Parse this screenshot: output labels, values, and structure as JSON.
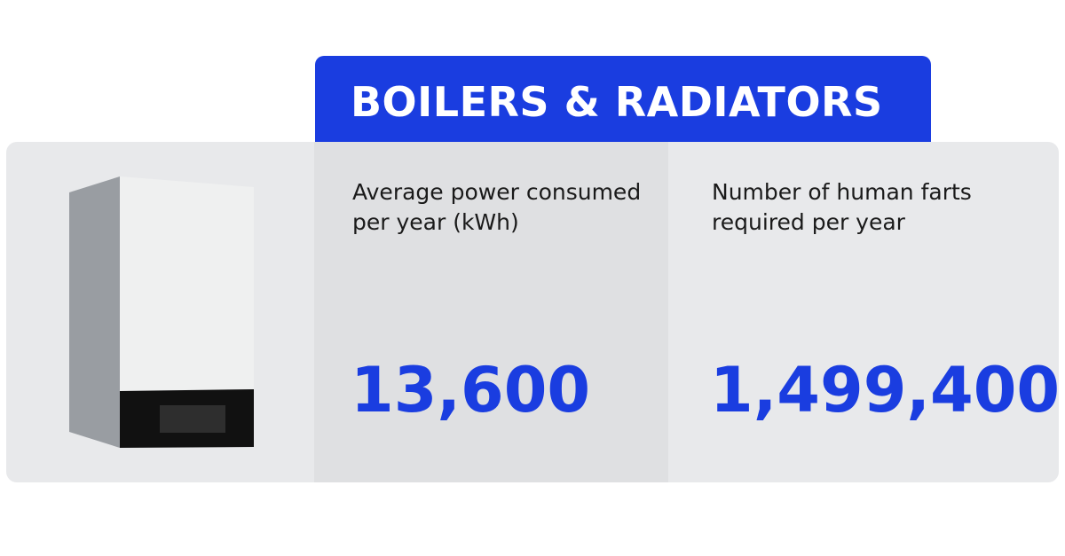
{
  "header": {
    "title": "BOILERS & RADIATORS"
  },
  "stats": [
    {
      "label": "Average power consumed per year (kWh)",
      "value": "13,600"
    },
    {
      "label": "Number of human farts required per year",
      "value": "1,499,400"
    }
  ],
  "colors": {
    "accent": "#1a3de0",
    "card_background": "#e8e9eb",
    "highlight_column": "#dfe0e2"
  },
  "illustration": {
    "icon": "boiler-icon"
  }
}
